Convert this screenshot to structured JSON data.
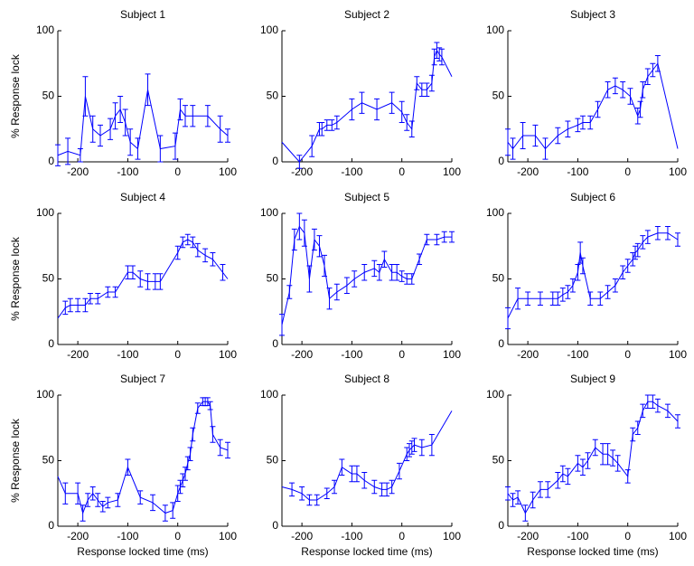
{
  "chart_data": [
    {
      "type": "line",
      "title": "Subject 1",
      "ylabel": "% Response lock",
      "x": [
        -240,
        -220,
        -195,
        -185,
        -170,
        -155,
        -135,
        -125,
        -115,
        -105,
        -95,
        -80,
        -60,
        -35,
        -5,
        5,
        15,
        30,
        60,
        85,
        100
      ],
      "series": [
        {
          "color": "#0000ff",
          "values": [
            5,
            8,
            5,
            50,
            25,
            20,
            25,
            35,
            40,
            30,
            15,
            10,
            55,
            10,
            12,
            40,
            35,
            35,
            35,
            25,
            20
          ],
          "errors": [
            8,
            10,
            5,
            15,
            10,
            8,
            8,
            10,
            10,
            10,
            10,
            8,
            12,
            10,
            10,
            8,
            8,
            8,
            8,
            10,
            5
          ]
        }
      ],
      "xlim": [
        -240,
        100
      ],
      "ylim": [
        0,
        100
      ],
      "xticks": [
        -200,
        -100,
        0,
        100
      ],
      "yticks": [
        0,
        50,
        100
      ]
    },
    {
      "type": "line",
      "title": "Subject 2",
      "x": [
        -240,
        -205,
        -180,
        -165,
        -160,
        -150,
        -140,
        -130,
        -100,
        -80,
        -50,
        -20,
        0,
        10,
        20,
        30,
        40,
        50,
        60,
        65,
        70,
        75,
        80,
        100
      ],
      "series": [
        {
          "color": "#0000ff",
          "values": [
            15,
            0,
            12,
            25,
            25,
            28,
            28,
            30,
            40,
            45,
            40,
            45,
            38,
            30,
            25,
            60,
            55,
            55,
            60,
            80,
            85,
            82,
            80,
            65
          ],
          "errors": [
            0,
            5,
            8,
            5,
            5,
            4,
            4,
            5,
            8,
            8,
            8,
            8,
            8,
            6,
            6,
            5,
            5,
            5,
            6,
            6,
            6,
            5,
            6,
            0
          ]
        }
      ],
      "xlim": [
        -240,
        100
      ],
      "ylim": [
        0,
        100
      ],
      "xticks": [
        -200,
        -100,
        0,
        100
      ],
      "yticks": [
        0,
        50,
        100
      ]
    },
    {
      "type": "line",
      "title": "Subject 3",
      "x": [
        -240,
        -230,
        -210,
        -185,
        -165,
        -140,
        -120,
        -100,
        -90,
        -75,
        -60,
        -40,
        -25,
        -10,
        5,
        20,
        25,
        30,
        40,
        50,
        60,
        100
      ],
      "series": [
        {
          "color": "#0000ff",
          "values": [
            15,
            10,
            20,
            20,
            10,
            20,
            25,
            28,
            30,
            30,
            40,
            55,
            58,
            55,
            50,
            35,
            40,
            55,
            65,
            70,
            75,
            10
          ],
          "errors": [
            10,
            8,
            10,
            8,
            8,
            6,
            6,
            5,
            5,
            5,
            6,
            6,
            6,
            6,
            6,
            6,
            6,
            6,
            6,
            5,
            6,
            0
          ]
        }
      ],
      "xlim": [
        -240,
        100
      ],
      "ylim": [
        0,
        100
      ],
      "xticks": [
        -200,
        -100,
        0,
        100
      ],
      "yticks": [
        0,
        50,
        100
      ]
    },
    {
      "type": "line",
      "title": "Subject 4",
      "ylabel": "% Response lock",
      "x": [
        -240,
        -225,
        -215,
        -200,
        -185,
        -175,
        -160,
        -140,
        -125,
        -100,
        -90,
        -75,
        -60,
        -45,
        -35,
        0,
        10,
        20,
        30,
        40,
        55,
        70,
        90,
        100
      ],
      "series": [
        {
          "color": "#0000ff",
          "values": [
            20,
            28,
            30,
            30,
            30,
            35,
            35,
            40,
            40,
            55,
            55,
            50,
            48,
            48,
            48,
            70,
            78,
            80,
            78,
            72,
            68,
            65,
            55,
            50
          ],
          "errors": [
            0,
            5,
            5,
            5,
            5,
            4,
            4,
            4,
            4,
            5,
            5,
            6,
            6,
            6,
            6,
            5,
            4,
            4,
            4,
            5,
            5,
            5,
            6,
            0
          ]
        }
      ],
      "xlim": [
        -240,
        100
      ],
      "ylim": [
        0,
        100
      ],
      "xticks": [
        -200,
        -100,
        0,
        100
      ],
      "yticks": [
        0,
        50,
        100
      ]
    },
    {
      "type": "line",
      "title": "Subject 5",
      "x": [
        -240,
        -225,
        -215,
        -205,
        -195,
        -185,
        -175,
        -165,
        -155,
        -145,
        -130,
        -110,
        -95,
        -75,
        -55,
        -45,
        -35,
        -20,
        -10,
        0,
        10,
        20,
        35,
        50,
        70,
        85,
        100
      ],
      "series": [
        {
          "color": "#0000ff",
          "values": [
            15,
            40,
            80,
            90,
            85,
            50,
            80,
            75,
            60,
            35,
            40,
            45,
            50,
            55,
            58,
            55,
            65,
            55,
            55,
            52,
            50,
            50,
            65,
            80,
            80,
            82,
            82
          ],
          "errors": [
            8,
            5,
            8,
            10,
            10,
            10,
            8,
            8,
            8,
            8,
            6,
            6,
            6,
            6,
            6,
            6,
            6,
            6,
            6,
            4,
            4,
            4,
            4,
            4,
            4,
            4,
            4
          ]
        }
      ],
      "xlim": [
        -240,
        100
      ],
      "ylim": [
        0,
        100
      ],
      "xticks": [
        -200,
        -100,
        0,
        100
      ],
      "yticks": [
        0,
        50,
        100
      ]
    },
    {
      "type": "line",
      "title": "Subject 6",
      "x": [
        -240,
        -220,
        -200,
        -175,
        -150,
        -140,
        -130,
        -120,
        -110,
        -100,
        -95,
        -90,
        -75,
        -55,
        -40,
        -25,
        -10,
        0,
        10,
        15,
        20,
        30,
        40,
        60,
        80,
        100
      ],
      "series": [
        {
          "color": "#0000ff",
          "values": [
            20,
            35,
            35,
            35,
            35,
            35,
            38,
            40,
            45,
            55,
            70,
            60,
            35,
            35,
            40,
            45,
            55,
            60,
            65,
            70,
            72,
            78,
            82,
            85,
            85,
            80
          ],
          "errors": [
            8,
            8,
            5,
            5,
            5,
            5,
            5,
            5,
            5,
            6,
            8,
            6,
            5,
            5,
            5,
            5,
            5,
            5,
            5,
            5,
            5,
            5,
            5,
            5,
            5,
            5
          ]
        }
      ],
      "xlim": [
        -240,
        100
      ],
      "ylim": [
        0,
        100
      ],
      "xticks": [
        -200,
        -100,
        0,
        100
      ],
      "yticks": [
        0,
        50,
        100
      ]
    },
    {
      "type": "line",
      "title": "Subject 7",
      "ylabel": "% Response lock",
      "xlabel": "Response locked time (ms)",
      "x": [
        -240,
        -225,
        -200,
        -190,
        -180,
        -170,
        -160,
        -150,
        -140,
        -120,
        -100,
        -75,
        -50,
        -25,
        -10,
        0,
        5,
        10,
        15,
        20,
        25,
        30,
        40,
        50,
        55,
        60,
        65,
        70,
        85,
        100
      ],
      "series": [
        {
          "color": "#0000ff",
          "values": [
            38,
            25,
            25,
            10,
            20,
            25,
            20,
            15,
            18,
            20,
            45,
            22,
            18,
            10,
            12,
            25,
            30,
            35,
            40,
            48,
            55,
            70,
            90,
            95,
            95,
            95,
            92,
            70,
            60,
            58
          ],
          "errors": [
            0,
            8,
            8,
            6,
            5,
            5,
            5,
            4,
            4,
            5,
            6,
            5,
            6,
            6,
            6,
            6,
            5,
            5,
            5,
            5,
            5,
            5,
            4,
            3,
            3,
            3,
            3,
            6,
            6,
            6
          ]
        }
      ],
      "xlim": [
        -240,
        100
      ],
      "ylim": [
        0,
        100
      ],
      "xticks": [
        -200,
        -100,
        0,
        100
      ],
      "yticks": [
        0,
        50,
        100
      ]
    },
    {
      "type": "line",
      "title": "Subject 8",
      "xlabel": "Response locked time (ms)",
      "x": [
        -240,
        -220,
        -200,
        -185,
        -170,
        -150,
        -135,
        -120,
        -100,
        -90,
        -75,
        -55,
        -40,
        -30,
        -20,
        -5,
        10,
        15,
        20,
        25,
        40,
        60,
        100
      ],
      "series": [
        {
          "color": "#0000ff",
          "values": [
            30,
            28,
            25,
            20,
            20,
            25,
            30,
            45,
            40,
            40,
            35,
            30,
            28,
            28,
            30,
            42,
            55,
            58,
            60,
            62,
            60,
            62,
            88
          ],
          "errors": [
            0,
            5,
            5,
            4,
            4,
            4,
            5,
            6,
            6,
            6,
            6,
            5,
            5,
            5,
            5,
            6,
            5,
            5,
            5,
            5,
            6,
            8,
            0
          ]
        }
      ],
      "xlim": [
        -240,
        100
      ],
      "ylim": [
        0,
        100
      ],
      "xticks": [
        -200,
        -100,
        0,
        100
      ],
      "yticks": [
        0,
        50,
        100
      ]
    },
    {
      "type": "line",
      "title": "Subject 9",
      "xlabel": "Response locked time (ms)",
      "x": [
        -240,
        -230,
        -220,
        -205,
        -190,
        -175,
        -160,
        -140,
        -130,
        -120,
        -100,
        -90,
        -80,
        -65,
        -50,
        -40,
        -30,
        -20,
        0,
        10,
        20,
        30,
        40,
        50,
        60,
        80,
        100
      ],
      "series": [
        {
          "color": "#0000ff",
          "values": [
            25,
            20,
            22,
            10,
            20,
            28,
            28,
            35,
            40,
            38,
            48,
            45,
            50,
            60,
            55,
            55,
            52,
            48,
            38,
            70,
            75,
            88,
            95,
            95,
            92,
            88,
            80
          ],
          "errors": [
            5,
            5,
            5,
            6,
            6,
            6,
            6,
            6,
            6,
            6,
            6,
            6,
            6,
            6,
            8,
            8,
            6,
            6,
            5,
            5,
            5,
            5,
            5,
            5,
            5,
            5,
            5
          ]
        }
      ],
      "xlim": [
        -240,
        100
      ],
      "ylim": [
        0,
        100
      ],
      "xticks": [
        -200,
        -100,
        0,
        100
      ],
      "yticks": [
        0,
        50,
        100
      ]
    }
  ]
}
